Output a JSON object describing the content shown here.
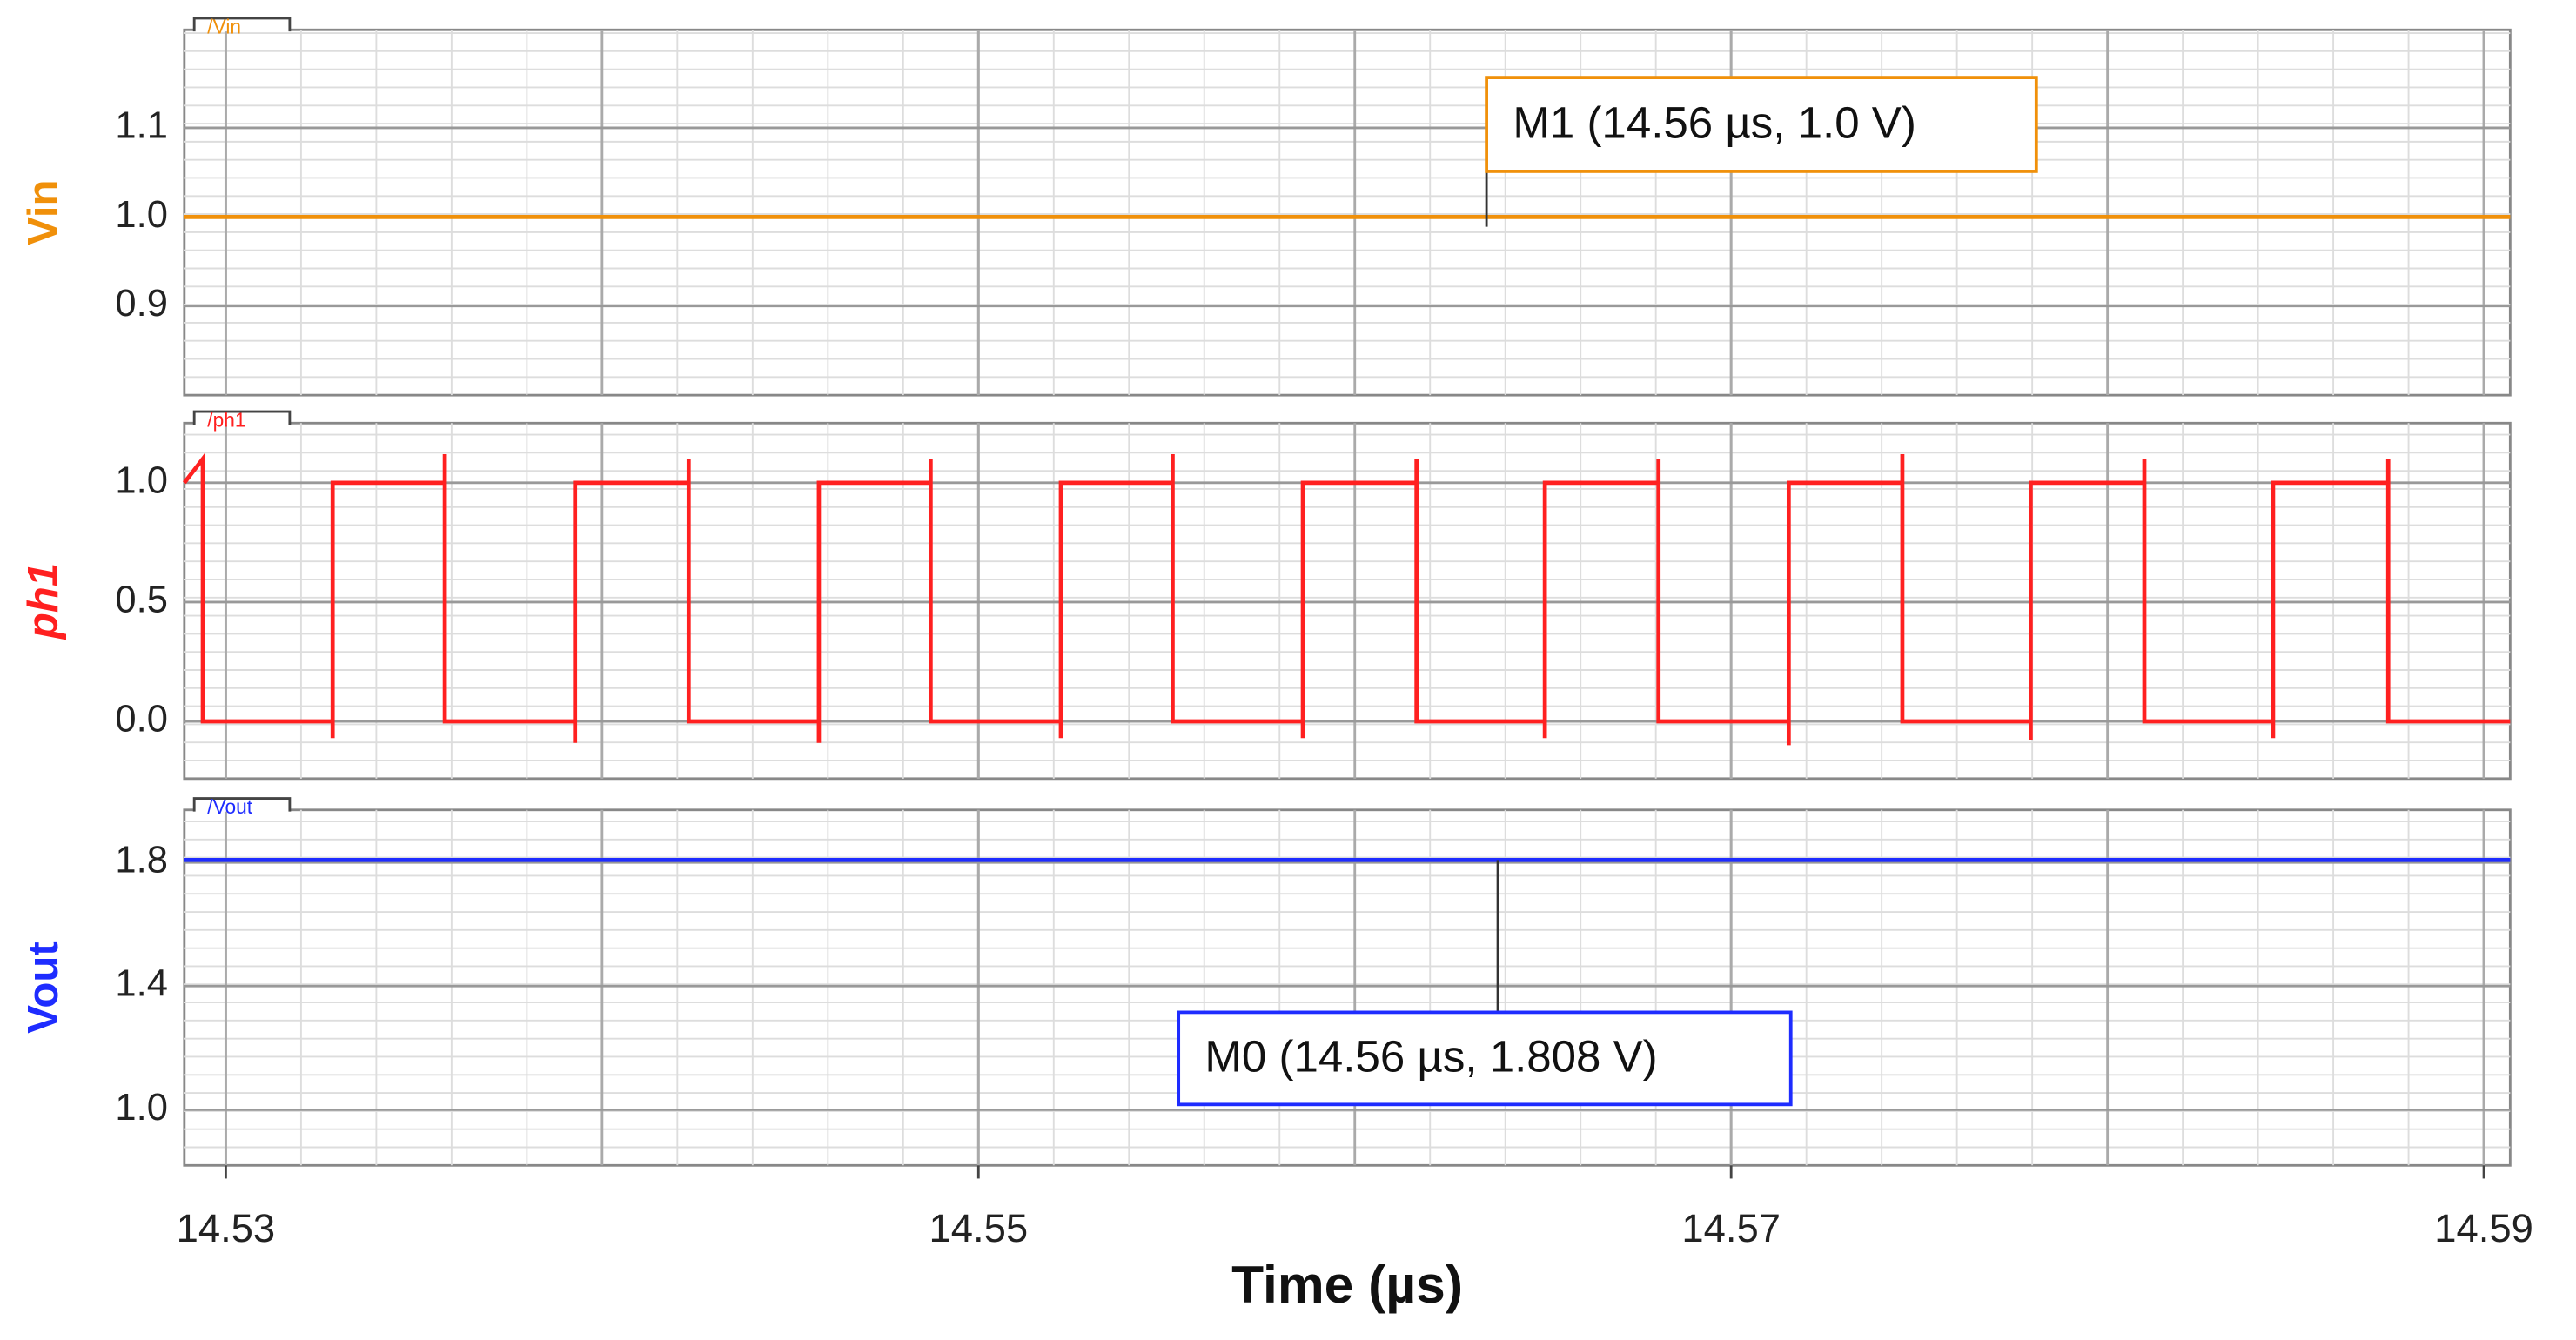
{
  "chart_data": [
    {
      "type": "line",
      "trace_label": "/Vin",
      "y_label": "Vin",
      "xlim": [
        14.5289,
        14.5907
      ],
      "xticks": [
        14.53,
        14.55,
        14.57,
        14.59
      ],
      "ylim": [
        0.8,
        1.21
      ],
      "yticks": [
        0.9,
        {
          "value": 1,
          "label": "1.0"
        },
        1.1
      ],
      "grid": true,
      "series": [
        {
          "name": "/Vin",
          "color": "#f0900a",
          "x": [
            14.5289,
            14.5907
          ],
          "values": [
            1,
            1
          ]
        }
      ],
      "markers": [
        {
          "x": 14.5635,
          "y": 1,
          "label": "M1 (14.56 µs, 1.0 V)"
        }
      ]
    },
    {
      "type": "line",
      "trace_label": "/ph1",
      "y_label": "ph1",
      "xlim": [
        14.5289,
        14.5907
      ],
      "xticks": [
        14.53,
        14.55,
        14.57,
        14.59
      ],
      "ylim": [
        -0.24,
        1.25
      ],
      "yticks": [
        {
          "value": 0,
          "label": "0.0"
        },
        0.5,
        {
          "value": 1,
          "label": "1.0"
        }
      ],
      "grid": true,
      "series": [
        {
          "name": "/ph1",
          "color": "#ff2020",
          "x": [
            14.5289,
            14.52939,
            14.52939,
            14.53284,
            14.53284,
            14.53284,
            14.53582,
            14.53582,
            14.53582,
            14.53928,
            14.53928,
            14.53928,
            14.5423,
            14.5423,
            14.5423,
            14.54576,
            14.54576,
            14.54576,
            14.54873,
            14.54873,
            14.54873,
            14.55219,
            14.55219,
            14.55219,
            14.55516,
            14.55516,
            14.55516,
            14.55862,
            14.55862,
            14.55862,
            14.56164,
            14.56164,
            14.56164,
            14.56505,
            14.56505,
            14.56505,
            14.56807,
            14.56807,
            14.56807,
            14.57153,
            14.57153,
            14.57153,
            14.57455,
            14.57455,
            14.57455,
            14.57796,
            14.57796,
            14.57796,
            14.58098,
            14.58098,
            14.58098,
            14.5844,
            14.5844,
            14.5844,
            14.58746,
            14.58746,
            14.58746,
            14.5907
          ],
          "values": [
            1,
            1.1,
            0,
            0,
            -0.07,
            1,
            1,
            1.12,
            0,
            0,
            -0.09,
            1,
            1,
            1.1,
            0,
            0,
            -0.09,
            1,
            1,
            1.1,
            0,
            0,
            -0.07,
            1,
            1,
            1.12,
            0,
            0,
            -0.07,
            1,
            1,
            1.1,
            0,
            0,
            -0.07,
            1,
            1,
            1.1,
            0,
            0,
            -0.1,
            1,
            1,
            1.12,
            0,
            0,
            -0.08,
            1,
            1,
            1.1,
            0,
            0,
            -0.07,
            1,
            1,
            1.1,
            0,
            0
          ]
        }
      ],
      "markers": []
    },
    {
      "type": "line",
      "trace_label": "/Vout",
      "y_label": "Vout",
      "x_label": "Time (µs)",
      "xlim": [
        14.5289,
        14.5907
      ],
      "xticks": [
        14.53,
        14.55,
        14.57,
        14.59
      ],
      "ylim": [
        0.82,
        1.97
      ],
      "yticks": [
        {
          "value": 1,
          "label": "1.0"
        },
        1.4,
        1.8
      ],
      "grid": true,
      "series": [
        {
          "name": "/Vout",
          "color": "#1e2cff",
          "x": [
            14.5289,
            14.5907
          ],
          "values": [
            1.808,
            1.808
          ]
        }
      ],
      "markers": [
        {
          "x": 14.5638,
          "y": 1.808,
          "label": "M0 (14.56 µs, 1.808 V)"
        }
      ]
    }
  ]
}
